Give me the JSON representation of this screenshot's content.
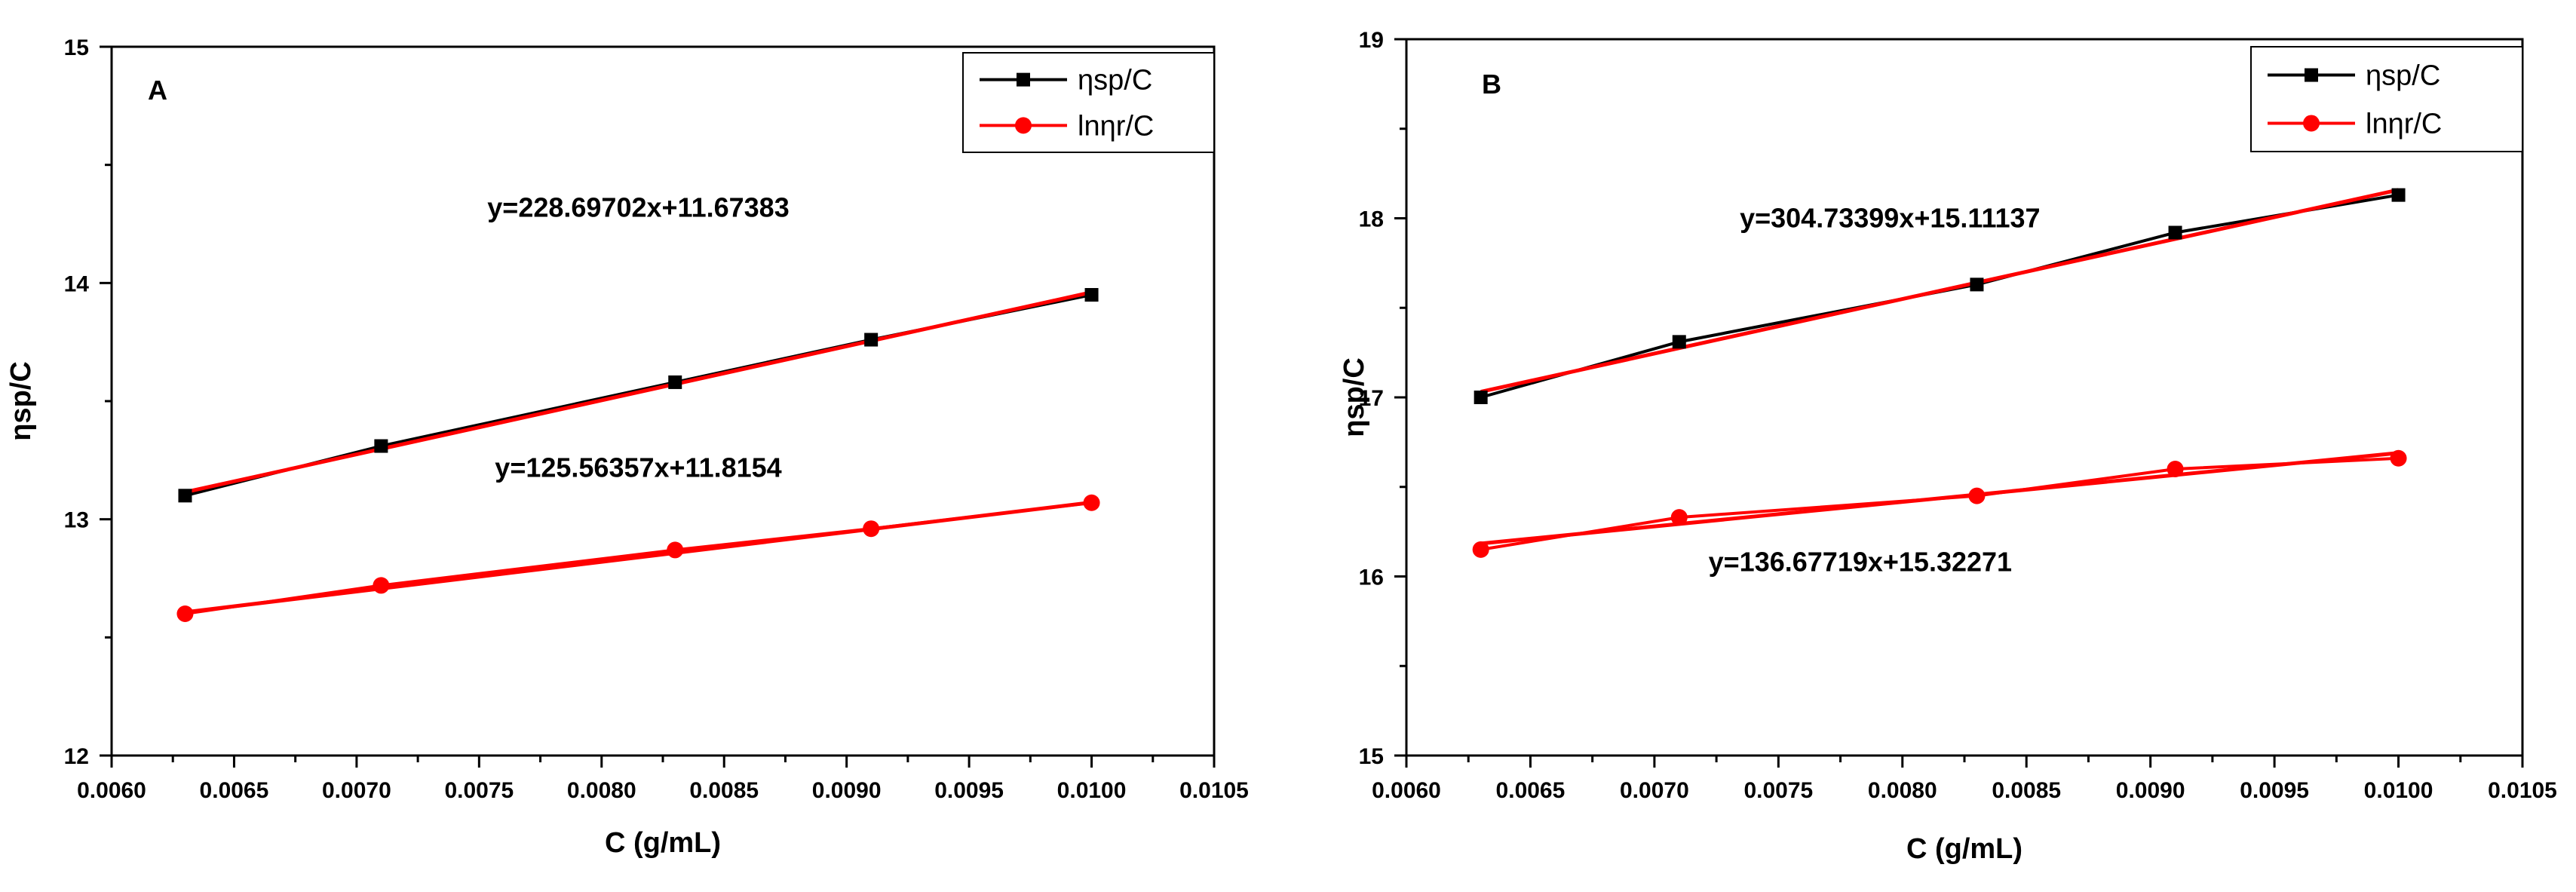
{
  "chart_data": [
    {
      "type": "line",
      "panel_label": "A",
      "xlabel": "C (g/mL)",
      "ylabel": "ηsp/C",
      "xlim": [
        0.006,
        0.0105
      ],
      "ylim": [
        12,
        15
      ],
      "x_ticks": [
        0.006,
        0.0065,
        0.007,
        0.0075,
        0.008,
        0.0085,
        0.009,
        0.0095,
        0.01,
        0.0105
      ],
      "x_tick_labels": [
        "0.0060",
        "0.0065",
        "0.0070",
        "0.0075",
        "0.0080",
        "0.0085",
        "0.0090",
        "0.0095",
        "0.0100",
        "0.0105"
      ],
      "y_ticks": [
        12,
        13,
        14,
        15
      ],
      "y_tick_labels": [
        "12",
        "13",
        "14",
        "15"
      ],
      "grid": false,
      "legend_position": "top-right",
      "series": [
        {
          "name": "ηsp/C",
          "color": "#000000",
          "marker": "square",
          "x": [
            0.0063,
            0.0071,
            0.0083,
            0.0091,
            0.01
          ],
          "values": [
            13.1,
            13.31,
            13.58,
            13.76,
            13.95
          ]
        },
        {
          "name": "lnηr/C",
          "color": "#ff0000",
          "marker": "circle",
          "x": [
            0.0063,
            0.0071,
            0.0083,
            0.0091,
            0.01
          ],
          "values": [
            12.6,
            12.72,
            12.87,
            12.96,
            13.07
          ]
        }
      ],
      "fits": [
        {
          "series": "ηsp/C",
          "slope": 228.69702,
          "intercept": 11.67383,
          "color": "#ff0000",
          "equation": "y=228.69702x+11.67383",
          "label_at": [
            0.00815,
            14.28
          ]
        },
        {
          "series": "lnηr/C",
          "slope": 125.56357,
          "intercept": 11.8154,
          "color": "#ff0000",
          "equation": "y=125.56357x+11.8154",
          "label_at": [
            0.00815,
            13.18
          ]
        }
      ]
    },
    {
      "type": "line",
      "panel_label": "B",
      "xlabel": "C (g/mL)",
      "ylabel": "ηsp/C",
      "xlim": [
        0.006,
        0.0105
      ],
      "ylim": [
        15,
        19
      ],
      "x_ticks": [
        0.006,
        0.0065,
        0.007,
        0.0075,
        0.008,
        0.0085,
        0.009,
        0.0095,
        0.01,
        0.0105
      ],
      "x_tick_labels": [
        "0.0060",
        "0.0065",
        "0.0070",
        "0.0075",
        "0.0080",
        "0.0085",
        "0.0090",
        "0.0095",
        "0.0100",
        "0.0105"
      ],
      "y_ticks": [
        15,
        16,
        17,
        18,
        19
      ],
      "y_tick_labels": [
        "15",
        "16",
        "17",
        "18",
        "19"
      ],
      "grid": false,
      "legend_position": "top-right",
      "series": [
        {
          "name": "ηsp/C",
          "color": "#000000",
          "marker": "square",
          "x": [
            0.0063,
            0.0071,
            0.0083,
            0.0091,
            0.01
          ],
          "values": [
            17.0,
            17.31,
            17.63,
            17.92,
            18.13
          ]
        },
        {
          "name": "lnηr/C",
          "color": "#ff0000",
          "marker": "circle",
          "x": [
            0.0063,
            0.0071,
            0.0083,
            0.0091,
            0.01
          ],
          "values": [
            16.15,
            16.33,
            16.45,
            16.6,
            16.66
          ]
        }
      ],
      "fits": [
        {
          "series": "ηsp/C",
          "slope": 304.73399,
          "intercept": 15.11137,
          "color": "#ff0000",
          "equation": "y=304.73399x+15.11137",
          "label_at": [
            0.00795,
            17.95
          ]
        },
        {
          "series": "lnηr/C",
          "slope": 136.67719,
          "intercept": 15.32271,
          "color": "#ff0000",
          "equation": "y=136.67719x+15.32271",
          "label_at": [
            0.00783,
            16.03
          ]
        }
      ]
    }
  ]
}
